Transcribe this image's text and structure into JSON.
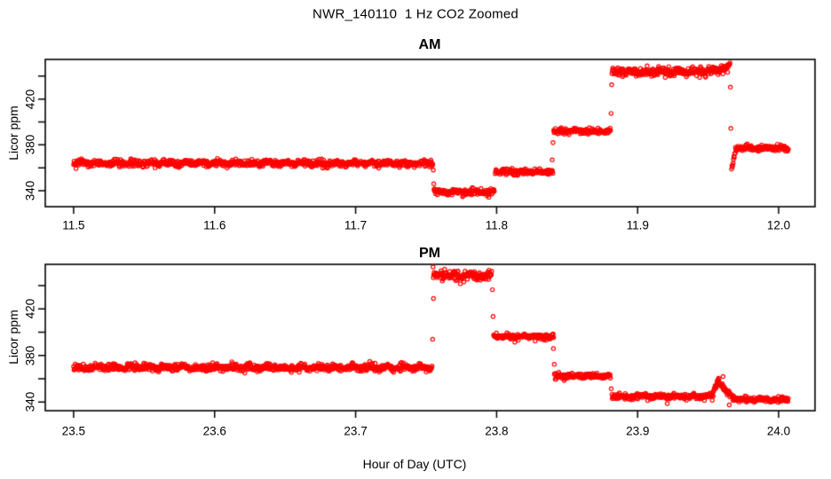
{
  "figure": {
    "title": "NWR_140110  1 Hz CO2 Zoomed",
    "xlabel": "Hour of Day (UTC)",
    "background": "#FFFFFF",
    "frame_color": "#000000",
    "point_color": "#FF0000"
  },
  "chart_data": [
    {
      "type": "scatter",
      "title": "AM",
      "ylabel": "Licor ppm",
      "xlim": [
        11.4799,
        12.0258
      ],
      "ylim": [
        326.1,
        454.6
      ],
      "xticks": [
        11.5,
        11.6,
        11.7,
        11.8,
        11.9,
        12.0
      ],
      "xtick_labels": [
        "11.5",
        "11.6",
        "11.7",
        "11.8",
        "11.9",
        "12.0"
      ],
      "yticks": [
        340,
        360,
        380,
        400,
        420,
        440
      ],
      "ytick_labels": [
        "340",
        "",
        "380",
        "",
        "420",
        ""
      ],
      "grid": false,
      "sample_rate_hz": 1,
      "segments": [
        {
          "t0": 11.5,
          "t1": 11.7549,
          "v0": 364.0,
          "v1": 364.0,
          "sd": 1.4,
          "w": 0.8
        },
        {
          "t0": 11.7556,
          "t1": 11.7985,
          "v0": 339.0,
          "v1": 339.0,
          "sd": 1.3,
          "w": 0.5
        },
        {
          "t0": 11.799,
          "t1": 11.84,
          "v0": 356.5,
          "v1": 356.5,
          "sd": 1.2,
          "w": 0.5
        },
        {
          "t0": 11.8405,
          "t1": 11.881,
          "v0": 392.0,
          "v1": 392.0,
          "sd": 1.2,
          "w": 0.5
        },
        {
          "t0": 11.8818,
          "t1": 11.958,
          "v0": 444.0,
          "v1": 444.0,
          "sd": 1.9,
          "w": 0.8
        },
        {
          "t0": 11.958,
          "t1": 11.9655,
          "v0": 444.0,
          "v1": 449.0,
          "sd": 1.8,
          "w": 0.0
        },
        {
          "t0": 11.9666,
          "t1": 11.9692,
          "v0": 359.0,
          "v1": 374.0,
          "sd": 2.0,
          "w": 0.0
        },
        {
          "t0": 11.9694,
          "t1": 12.007,
          "v0": 377.5,
          "v1": 377.5,
          "sd": 1.2,
          "w": 0.5
        }
      ],
      "outliers": [
        [
          11.7551,
          358.0
        ],
        [
          11.7554,
          346.0
        ],
        [
          11.8394,
          367.0
        ],
        [
          11.84,
          382.0
        ],
        [
          11.8812,
          407.5
        ],
        [
          11.8816,
          432.5
        ],
        [
          11.9658,
          430.5
        ],
        [
          11.9661,
          394.5
        ]
      ]
    },
    {
      "type": "scatter",
      "title": "PM",
      "ylabel": "Licor ppm",
      "xlim": [
        23.4799,
        24.0258
      ],
      "ylim": [
        332.6,
        458.3
      ],
      "xticks": [
        23.5,
        23.6,
        23.7,
        23.8,
        23.9,
        24.0
      ],
      "xtick_labels": [
        "23.5",
        "23.6",
        "23.7",
        "23.8",
        "23.9",
        "24.0"
      ],
      "yticks": [
        340,
        360,
        380,
        400,
        420,
        440
      ],
      "ytick_labels": [
        "340",
        "",
        "380",
        "",
        "420",
        ""
      ],
      "grid": false,
      "sample_rate_hz": 1,
      "segments": [
        {
          "t0": 23.5,
          "t1": 23.7544,
          "v0": 369.7,
          "v1": 369.7,
          "sd": 1.4,
          "w": 0.8
        },
        {
          "t0": 23.7551,
          "t1": 23.7966,
          "v0": 448.4,
          "v1": 448.4,
          "sd": 2.1,
          "w": 0.8
        },
        {
          "t0": 23.7979,
          "t1": 23.8406,
          "v0": 396.2,
          "v1": 396.2,
          "sd": 1.2,
          "w": 0.5
        },
        {
          "t0": 23.841,
          "t1": 23.881,
          "v0": 362.4,
          "v1": 362.4,
          "sd": 1.2,
          "w": 0.5
        },
        {
          "t0": 23.8818,
          "t1": 23.953,
          "v0": 344.8,
          "v1": 344.8,
          "sd": 1.2,
          "w": 0.5
        },
        {
          "t0": 23.953,
          "t1": 23.9568,
          "v0": 345.5,
          "v1": 357.5,
          "sd": 1.4,
          "w": 0.0
        },
        {
          "t0": 23.9568,
          "t1": 23.9685,
          "v0": 357.5,
          "v1": 342.3,
          "sd": 1.4,
          "w": 0.0
        },
        {
          "t0": 23.9685,
          "t1": 24.007,
          "v0": 342.3,
          "v1": 342.3,
          "sd": 1.1,
          "w": 0.4
        }
      ],
      "outliers": [
        [
          23.7546,
          394.0
        ],
        [
          23.7549,
          456.0
        ],
        [
          23.7552,
          429.0
        ],
        [
          23.797,
          436.5
        ],
        [
          23.7975,
          413.5
        ],
        [
          23.8403,
          386.0
        ],
        [
          23.8409,
          372.5
        ],
        [
          23.8813,
          351.5
        ],
        [
          23.921,
          338.7
        ],
        [
          23.9606,
          362.0
        ],
        [
          23.965,
          337.5
        ]
      ]
    }
  ]
}
